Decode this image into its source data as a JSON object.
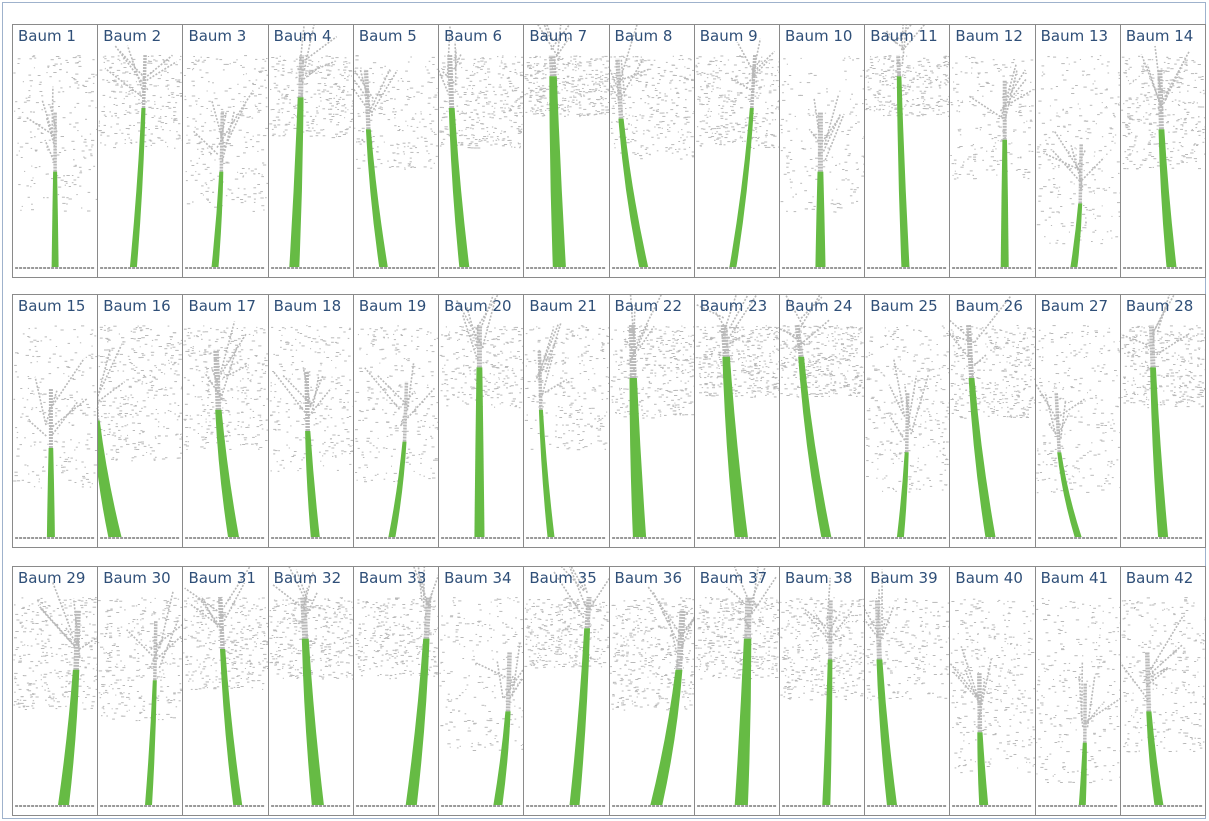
{
  "colors": {
    "label": "#2f4f78",
    "stem": "#66bb44",
    "crown_points": "#b9b9b9",
    "ground": "#9a9a9a",
    "border": "#8a8a8a"
  },
  "rows": [
    {
      "trees": [
        {
          "label": "Baum 1",
          "stem_top": 0.55,
          "lean": 0.0,
          "base_x": 0.5,
          "width": 0.14,
          "crown": 0.5
        },
        {
          "label": "Baum 2",
          "stem_top": 0.25,
          "lean": 0.08,
          "base_x": 0.42,
          "width": 0.14,
          "crown": 0.6
        },
        {
          "label": "Baum 3",
          "stem_top": 0.55,
          "lean": 0.05,
          "base_x": 0.38,
          "width": 0.14,
          "crown": 0.6
        },
        {
          "label": "Baum 4",
          "stem_top": 0.2,
          "lean": 0.05,
          "base_x": 0.3,
          "width": 0.2,
          "crown": 0.7
        },
        {
          "label": "Baum 5",
          "stem_top": 0.35,
          "lean": -0.12,
          "base_x": 0.35,
          "width": 0.17,
          "crown": 0.5
        },
        {
          "label": "Baum 6",
          "stem_top": 0.25,
          "lean": -0.1,
          "base_x": 0.3,
          "width": 0.2,
          "crown": 0.8
        },
        {
          "label": "Baum 7",
          "stem_top": 0.1,
          "lean": -0.05,
          "base_x": 0.42,
          "width": 0.26,
          "crown": 0.9
        },
        {
          "label": "Baum 8",
          "stem_top": 0.3,
          "lean": -0.18,
          "base_x": 0.4,
          "width": 0.18,
          "crown": 0.7
        },
        {
          "label": "Baum 9",
          "stem_top": 0.25,
          "lean": 0.15,
          "base_x": 0.45,
          "width": 0.14,
          "crown": 0.8
        },
        {
          "label": "Baum 10",
          "stem_top": 0.55,
          "lean": 0.0,
          "base_x": 0.48,
          "width": 0.2,
          "crown": 0.4
        },
        {
          "label": "Baum 11",
          "stem_top": 0.1,
          "lean": -0.05,
          "base_x": 0.48,
          "width": 0.16,
          "crown": 0.7
        },
        {
          "label": "Baum 12",
          "stem_top": 0.4,
          "lean": 0.0,
          "base_x": 0.65,
          "width": 0.16,
          "crown": 0.5
        },
        {
          "label": "Baum 13",
          "stem_top": 0.7,
          "lean": 0.05,
          "base_x": 0.45,
          "width": 0.14,
          "crown": 0.6
        },
        {
          "label": "Baum 14",
          "stem_top": 0.35,
          "lean": -0.08,
          "base_x": 0.6,
          "width": 0.2,
          "crown": 0.8
        }
      ]
    },
    {
      "trees": [
        {
          "label": "Baum 15",
          "stem_top": 0.58,
          "lean": 0.0,
          "base_x": 0.45,
          "width": 0.16,
          "crown": 0.5
        },
        {
          "label": "Baum 16",
          "stem_top": 0.45,
          "lean": -0.15,
          "base_x": 0.2,
          "width": 0.26,
          "crown": 0.8
        },
        {
          "label": "Baum 17",
          "stem_top": 0.4,
          "lean": -0.12,
          "base_x": 0.6,
          "width": 0.22,
          "crown": 0.8
        },
        {
          "label": "Baum 18",
          "stem_top": 0.5,
          "lean": -0.06,
          "base_x": 0.55,
          "width": 0.18,
          "crown": 0.6
        },
        {
          "label": "Baum 19",
          "stem_top": 0.55,
          "lean": 0.1,
          "base_x": 0.45,
          "width": 0.14,
          "crown": 0.6
        },
        {
          "label": "Baum 20",
          "stem_top": 0.2,
          "lean": 0.0,
          "base_x": 0.48,
          "width": 0.2,
          "crown": 0.6
        },
        {
          "label": "Baum 21",
          "stem_top": 0.4,
          "lean": -0.08,
          "base_x": 0.32,
          "width": 0.14,
          "crown": 0.6
        },
        {
          "label": "Baum 22",
          "stem_top": 0.25,
          "lean": -0.05,
          "base_x": 0.35,
          "width": 0.26,
          "crown": 0.8
        },
        {
          "label": "Baum 23",
          "stem_top": 0.15,
          "lean": -0.12,
          "base_x": 0.55,
          "width": 0.26,
          "crown": 0.9
        },
        {
          "label": "Baum 24",
          "stem_top": 0.15,
          "lean": -0.2,
          "base_x": 0.55,
          "width": 0.2,
          "crown": 0.9
        },
        {
          "label": "Baum 25",
          "stem_top": 0.6,
          "lean": 0.05,
          "base_x": 0.42,
          "width": 0.14,
          "crown": 0.7
        },
        {
          "label": "Baum 26",
          "stem_top": 0.25,
          "lean": -0.15,
          "base_x": 0.48,
          "width": 0.2,
          "crown": 0.8
        },
        {
          "label": "Baum 27",
          "stem_top": 0.6,
          "lean": -0.15,
          "base_x": 0.5,
          "width": 0.14,
          "crown": 0.6
        },
        {
          "label": "Baum 28",
          "stem_top": 0.2,
          "lean": -0.08,
          "base_x": 0.5,
          "width": 0.2,
          "crown": 0.8
        }
      ]
    },
    {
      "trees": [
        {
          "label": "Baum 29",
          "stem_top": 0.35,
          "lean": 0.1,
          "base_x": 0.6,
          "width": 0.22,
          "crown": 0.8
        },
        {
          "label": "Baum 30",
          "stem_top": 0.4,
          "lean": 0.05,
          "base_x": 0.6,
          "width": 0.14,
          "crown": 0.7
        },
        {
          "label": "Baum 31",
          "stem_top": 0.25,
          "lean": -0.12,
          "base_x": 0.65,
          "width": 0.18,
          "crown": 0.8
        },
        {
          "label": "Baum 32",
          "stem_top": 0.2,
          "lean": -0.1,
          "base_x": 0.58,
          "width": 0.24,
          "crown": 0.8
        },
        {
          "label": "Baum 33",
          "stem_top": 0.2,
          "lean": 0.12,
          "base_x": 0.68,
          "width": 0.22,
          "crown": 0.7
        },
        {
          "label": "Baum 34",
          "stem_top": 0.55,
          "lean": 0.08,
          "base_x": 0.7,
          "width": 0.18,
          "crown": 0.5
        },
        {
          "label": "Baum 35",
          "stem_top": 0.15,
          "lean": 0.1,
          "base_x": 0.6,
          "width": 0.2,
          "crown": 0.8
        },
        {
          "label": "Baum 36",
          "stem_top": 0.35,
          "lean": 0.18,
          "base_x": 0.55,
          "width": 0.24,
          "crown": 0.9
        },
        {
          "label": "Baum 37",
          "stem_top": 0.2,
          "lean": 0.05,
          "base_x": 0.55,
          "width": 0.26,
          "crown": 0.9
        },
        {
          "label": "Baum 38",
          "stem_top": 0.3,
          "lean": 0.03,
          "base_x": 0.55,
          "width": 0.16,
          "crown": 0.8
        },
        {
          "label": "Baum 39",
          "stem_top": 0.3,
          "lean": -0.1,
          "base_x": 0.32,
          "width": 0.2,
          "crown": 0.5
        },
        {
          "label": "Baum 40",
          "stem_top": 0.65,
          "lean": -0.03,
          "base_x": 0.4,
          "width": 0.18,
          "crown": 0.8
        },
        {
          "label": "Baum 41",
          "stem_top": 0.7,
          "lean": 0.02,
          "base_x": 0.55,
          "width": 0.14,
          "crown": 0.6
        },
        {
          "label": "Baum 42",
          "stem_top": 0.55,
          "lean": -0.08,
          "base_x": 0.45,
          "width": 0.18,
          "crown": 0.7
        }
      ]
    }
  ]
}
